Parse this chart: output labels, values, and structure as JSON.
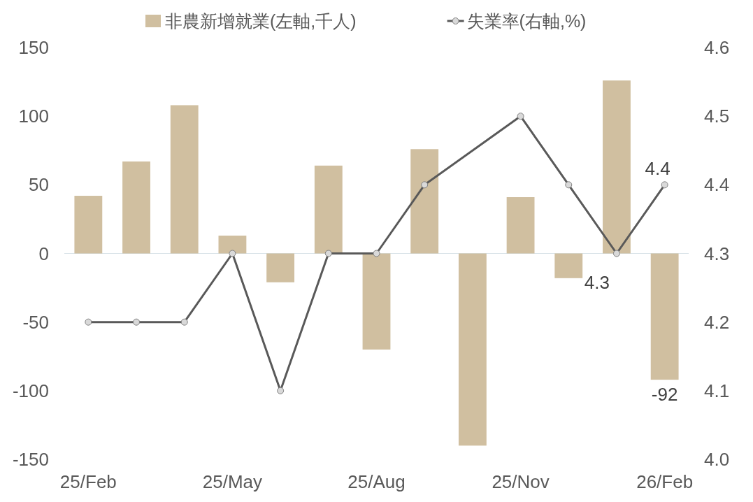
{
  "chart_data": {
    "type": "bar",
    "categories": [
      "25/Feb",
      null,
      null,
      "25/May",
      null,
      null,
      "25/Aug",
      null,
      null,
      "25/Nov",
      null,
      null,
      "26/Feb"
    ],
    "series": [
      {
        "name": "非農新增就業(左軸,千人)",
        "color": "#d0bfa0",
        "values": [
          42,
          67,
          108,
          13,
          -21,
          64,
          -70,
          76,
          -140,
          41,
          -18,
          126,
          -92
        ],
        "value_labels": [
          null,
          null,
          null,
          null,
          null,
          null,
          null,
          null,
          null,
          null,
          null,
          null,
          "-92"
        ]
      },
      {
        "name": "失業率(右軸,%)",
        "type": "line",
        "axis": "y2",
        "color": "#595959",
        "marker": "circle",
        "values": [
          4.2,
          4.2,
          4.2,
          4.3,
          4.1,
          4.3,
          4.3,
          4.4,
          null,
          4.5,
          4.4,
          4.3,
          4.4
        ],
        "value_labels": [
          null,
          null,
          null,
          null,
          null,
          null,
          null,
          null,
          null,
          null,
          null,
          "4.3",
          "4.4"
        ]
      }
    ],
    "ylim": [
      -150,
      150
    ],
    "yticks": [
      -150,
      -100,
      -50,
      0,
      50,
      100,
      150
    ],
    "y2lim": [
      4.0,
      4.6
    ],
    "y2ticks": [
      {
        "value": 4.0,
        "label": "4.0"
      },
      4.1,
      4.2,
      4.3,
      4.4,
      4.5,
      4.6
    ],
    "legend": "top"
  }
}
